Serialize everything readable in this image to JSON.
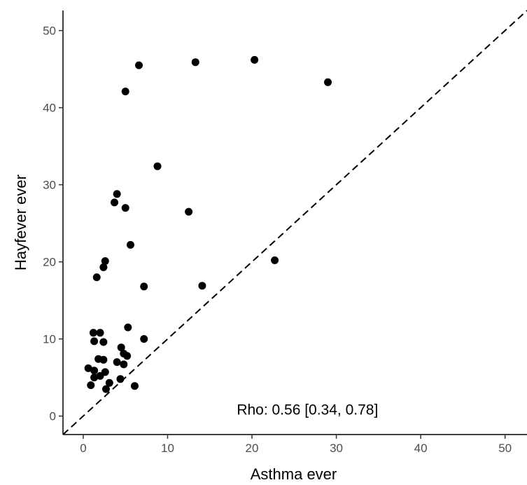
{
  "chart_data": {
    "type": "scatter",
    "title": "",
    "xlabel": "Asthma ever",
    "ylabel": "Hayfever ever",
    "xlim": [
      -2.4,
      52.6
    ],
    "ylim": [
      -2.4,
      52.6
    ],
    "xticks": [
      0,
      10,
      20,
      30,
      40,
      50
    ],
    "yticks": [
      0,
      10,
      20,
      30,
      40,
      50
    ],
    "grid": false,
    "reference_line": "y = x (dashed)",
    "annotation": "Rho: 0.56 [0.34, 0.78]",
    "point_color": "#000000",
    "series": [
      {
        "points": [
          [
            6.6,
            45.5
          ],
          [
            13.3,
            45.9
          ],
          [
            20.3,
            46.2
          ],
          [
            29.0,
            43.3
          ],
          [
            5.0,
            42.1
          ],
          [
            8.8,
            32.4
          ],
          [
            4.0,
            28.8
          ],
          [
            3.7,
            27.7
          ],
          [
            5.0,
            27.0
          ],
          [
            12.5,
            26.5
          ],
          [
            5.6,
            22.2
          ],
          [
            2.6,
            20.1
          ],
          [
            22.7,
            20.2
          ],
          [
            2.4,
            19.3
          ],
          [
            1.6,
            18.0
          ],
          [
            7.2,
            16.8
          ],
          [
            14.1,
            16.9
          ],
          [
            5.3,
            11.5
          ],
          [
            1.2,
            10.8
          ],
          [
            2.0,
            10.8
          ],
          [
            1.3,
            9.7
          ],
          [
            2.4,
            9.6
          ],
          [
            7.2,
            10.0
          ],
          [
            4.5,
            8.9
          ],
          [
            1.8,
            7.4
          ],
          [
            2.4,
            7.3
          ],
          [
            4.8,
            8.1
          ],
          [
            4.0,
            7.0
          ],
          [
            5.2,
            7.8
          ],
          [
            4.8,
            6.7
          ],
          [
            0.6,
            6.2
          ],
          [
            1.3,
            5.9
          ],
          [
            2.6,
            5.7
          ],
          [
            1.3,
            5.0
          ],
          [
            2.0,
            5.2
          ],
          [
            4.4,
            4.8
          ],
          [
            0.9,
            4.0
          ],
          [
            3.1,
            4.3
          ],
          [
            2.7,
            3.5
          ],
          [
            6.1,
            3.9
          ]
        ]
      }
    ]
  }
}
